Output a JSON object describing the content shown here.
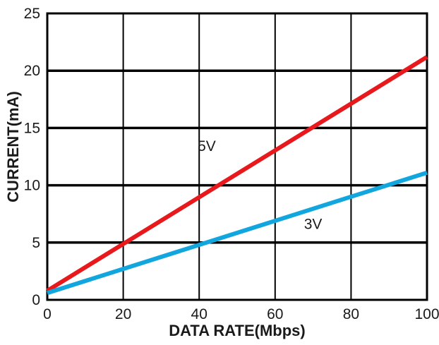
{
  "chart_data": {
    "type": "line",
    "title": "",
    "xlabel": "DATA RATE(Mbps)",
    "ylabel": "CURRENT(mA)",
    "xlim": [
      0,
      100
    ],
    "ylim": [
      0,
      25
    ],
    "x_ticks": [
      0,
      20,
      40,
      60,
      80,
      100
    ],
    "y_ticks": [
      0,
      5,
      10,
      15,
      20,
      25
    ],
    "grid": true,
    "legend": "none",
    "series": [
      {
        "name": "5V",
        "color": "#e8191c",
        "x": [
          0,
          100
        ],
        "y": [
          0.8,
          21.2
        ]
      },
      {
        "name": "3V",
        "color": "#12a6df",
        "x": [
          0,
          100
        ],
        "y": [
          0.6,
          11.1
        ]
      }
    ]
  }
}
